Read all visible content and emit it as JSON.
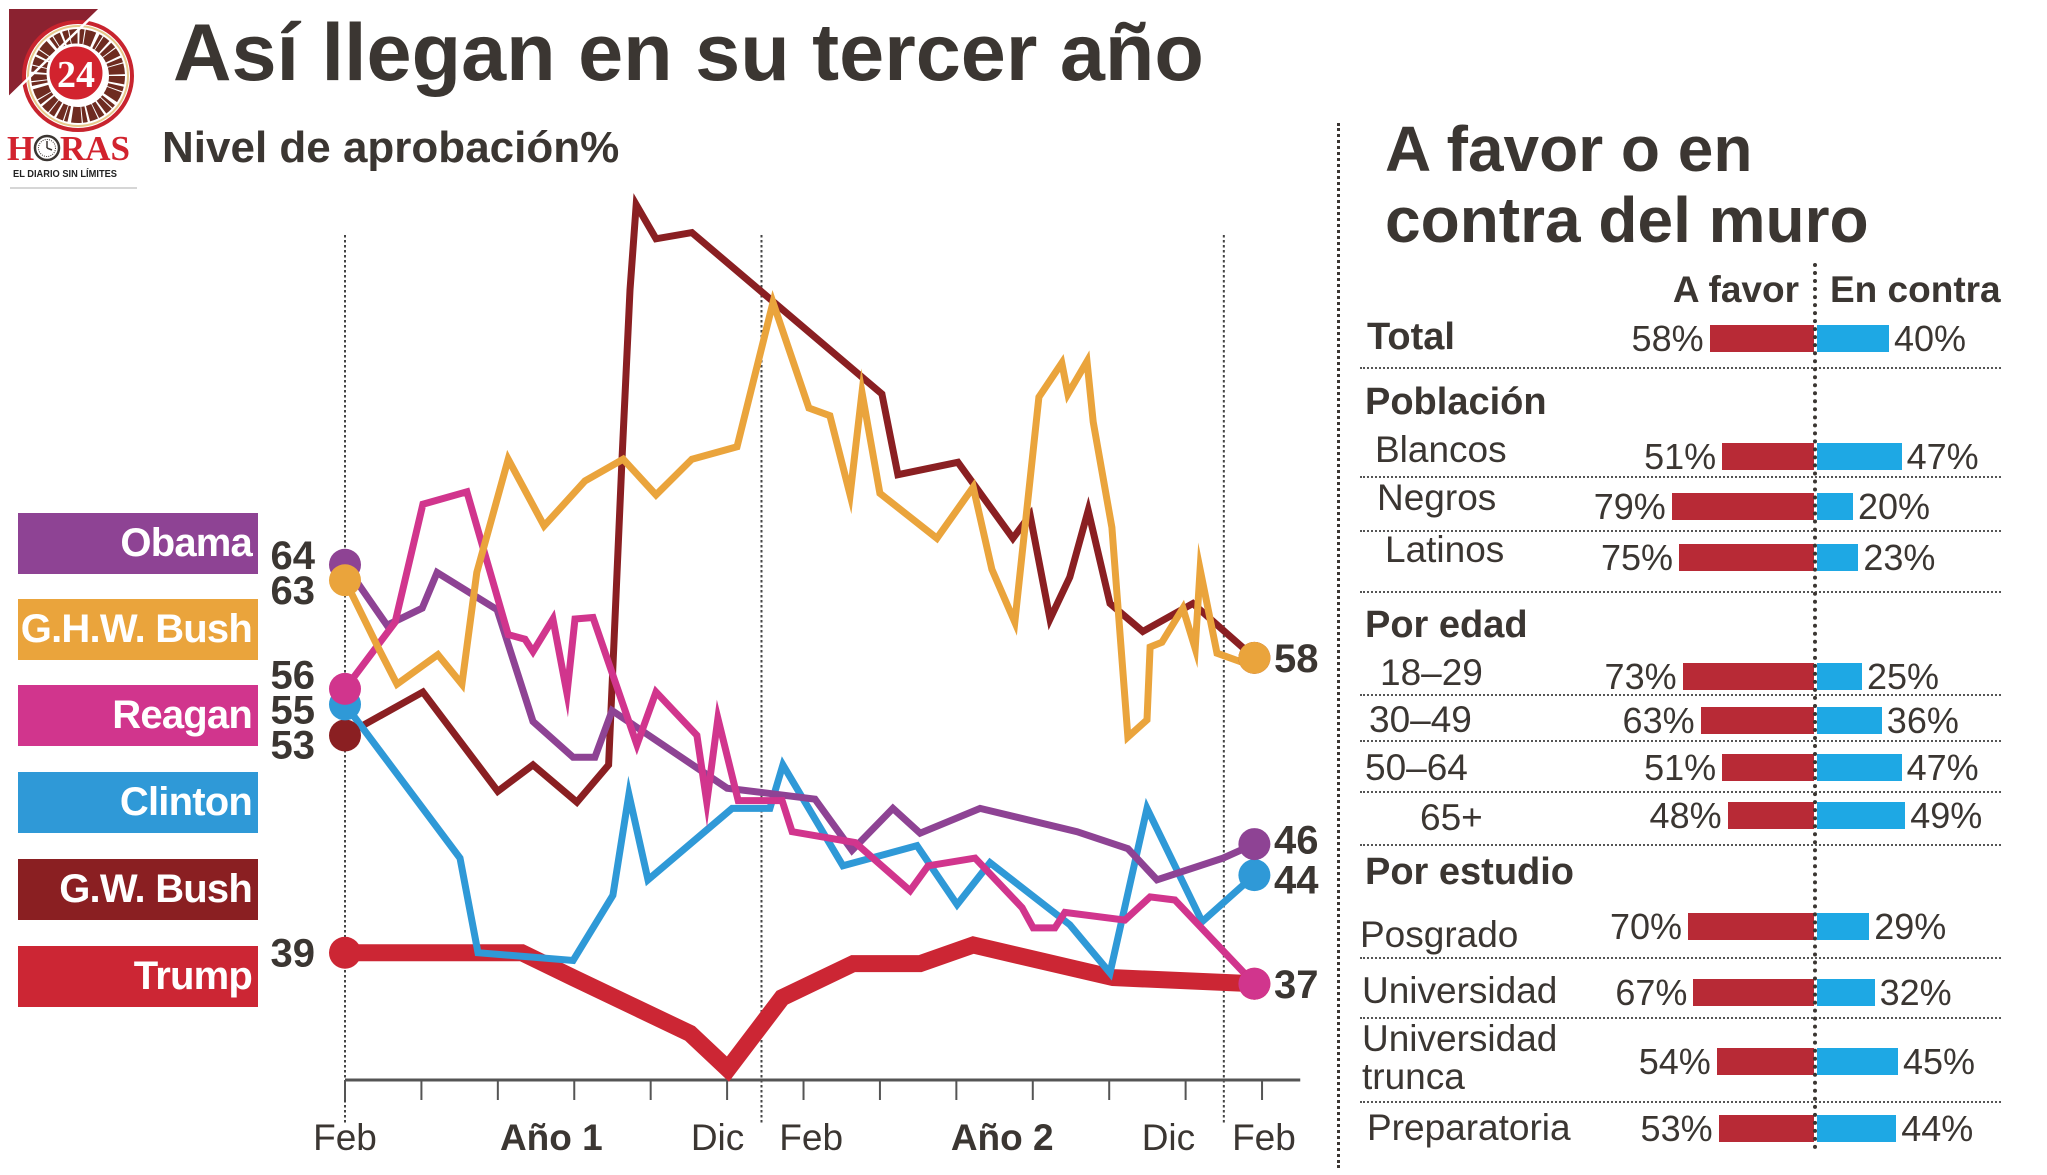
{
  "header": {
    "title": "Así llegan en su tercer año",
    "subtitle": "Nivel de aprobación%"
  },
  "logo": {
    "number": "24",
    "name_prefix": "H",
    "name_icon": "clock-icon",
    "name_suffix": "RAS",
    "tagline": "EL DIARIO SIN LÍMITES",
    "colors": {
      "red": "#D2232E",
      "dark_red": "#8B2230",
      "skyline": "#6E2B20"
    }
  },
  "text_color": "#3B3632",
  "chart_data": [
    {
      "type": "line",
      "title": "Así llegan en su tercer año",
      "subtitle": "Nivel de aprobación%",
      "xlabel": "",
      "ylabel": "Nivel de aprobación (%)",
      "x_units": "months since February of year 1",
      "xlim": [
        0,
        25
      ],
      "ylim": [
        30.8,
        87.5
      ],
      "grid": false,
      "legend_position": "left",
      "x_ticks": [
        0,
        2,
        4,
        6,
        8,
        10,
        12,
        14,
        16,
        18,
        20,
        22,
        24
      ],
      "x_tick_labels": [
        {
          "text": "Feb",
          "x": 0,
          "bold": false
        },
        {
          "text": "Año 1",
          "x": 5.4,
          "bold": true
        },
        {
          "text": "Dic",
          "x": 9.75,
          "bold": false
        },
        {
          "text": "Feb",
          "x": 12.2,
          "bold": false
        },
        {
          "text": "Año 2",
          "x": 17.2,
          "bold": true
        },
        {
          "text": "Dic",
          "x": 21.55,
          "bold": false
        },
        {
          "text": "Feb",
          "x": 24.05,
          "bold": false
        }
      ],
      "reference_lines_x": [
        0,
        10.9,
        23
      ],
      "series": [
        {
          "name": "Obama",
          "color": "#8E4394",
          "highlight": false,
          "start_label": "64",
          "points": [
            [
              0,
              64
            ],
            [
              1.1,
              60.1
            ],
            [
              2.02,
              61.2
            ],
            [
              2.41,
              63.5
            ],
            [
              3.98,
              61.1
            ],
            [
              4.92,
              53.9
            ],
            [
              5.97,
              51.6
            ],
            [
              6.54,
              51.6
            ],
            [
              6.99,
              54.6
            ],
            [
              10.0,
              49.6
            ],
            [
              12.3,
              48.9
            ],
            [
              13.27,
              45.6
            ],
            [
              14.34,
              48.3
            ],
            [
              15.05,
              46.7
            ],
            [
              16.62,
              48.3
            ],
            [
              19.16,
              46.8
            ],
            [
              20.49,
              45.7
            ],
            [
              21.25,
              43.7
            ],
            [
              22.98,
              45.1
            ],
            [
              23.8,
              46
            ]
          ]
        },
        {
          "name": "G.H.W. Bush",
          "color": "#EAA43C",
          "highlight": false,
          "start_label": "63",
          "points": [
            [
              0,
              63
            ],
            [
              0.84,
              58.8
            ],
            [
              1.36,
              56.3
            ],
            [
              2.43,
              58.2
            ],
            [
              3.06,
              56.3
            ],
            [
              3.45,
              63.5
            ],
            [
              4.27,
              70.8
            ],
            [
              5.21,
              66.5
            ],
            [
              6.28,
              69.4
            ],
            [
              7.28,
              70.8
            ],
            [
              8.14,
              68.5
            ],
            [
              9.08,
              70.8
            ],
            [
              10.26,
              71.6
            ],
            [
              11.2,
              80.9
            ],
            [
              12.14,
              74.1
            ],
            [
              12.69,
              73.6
            ],
            [
              13.22,
              68.5
            ],
            [
              13.53,
              75.1
            ],
            [
              14.0,
              68.6
            ],
            [
              15.49,
              65.7
            ],
            [
              16.44,
              69.0
            ],
            [
              16.93,
              63.7
            ],
            [
              17.53,
              60.3
            ],
            [
              18.16,
              74.8
            ],
            [
              18.76,
              77.0
            ],
            [
              18.92,
              75.0
            ],
            [
              19.42,
              77.1
            ],
            [
              19.58,
              73.2
            ],
            [
              20.07,
              66.4
            ],
            [
              20.49,
              52.9
            ],
            [
              20.99,
              54.0
            ],
            [
              21.07,
              58.7
            ],
            [
              21.38,
              59.0
            ],
            [
              21.93,
              61.2
            ],
            [
              22.25,
              58.6
            ],
            [
              22.38,
              63.7
            ],
            [
              22.82,
              58.3
            ],
            [
              23.5,
              57.7
            ],
            [
              23.8,
              58
            ]
          ]
        },
        {
          "name": "Reagan",
          "color": "#D1358D",
          "highlight": false,
          "start_label": "56",
          "points": [
            [
              0,
              56
            ],
            [
              1.31,
              60.3
            ],
            [
              2.04,
              67.9
            ],
            [
              3.19,
              68.7
            ],
            [
              4.27,
              59.5
            ],
            [
              4.71,
              59.2
            ],
            [
              4.92,
              58.4
            ],
            [
              5.44,
              60.5
            ],
            [
              5.81,
              55.7
            ],
            [
              6.02,
              60.5
            ],
            [
              6.49,
              60.6
            ],
            [
              7.64,
              52.4
            ],
            [
              8.14,
              55.8
            ],
            [
              9.21,
              53.0
            ],
            [
              9.47,
              48.7
            ],
            [
              9.76,
              54.1
            ],
            [
              10.29,
              48.8
            ],
            [
              11.44,
              48.8
            ],
            [
              11.7,
              46.8
            ],
            [
              13.35,
              46.1
            ],
            [
              14.79,
              43.0
            ],
            [
              15.26,
              44.6
            ],
            [
              16.49,
              45.1
            ],
            [
              17.72,
              41.9
            ],
            [
              18.01,
              40.6
            ],
            [
              18.58,
              40.6
            ],
            [
              18.84,
              41.6
            ],
            [
              20.41,
              41.1
            ],
            [
              21.07,
              42.6
            ],
            [
              21.72,
              42.4
            ],
            [
              23.8,
              37
            ]
          ]
        },
        {
          "name": "Clinton",
          "color": "#2F99D7",
          "highlight": false,
          "start_label": "55",
          "points": [
            [
              0,
              55
            ],
            [
              3.01,
              45.1
            ],
            [
              3.48,
              39.0
            ],
            [
              5.97,
              38.5
            ],
            [
              7.01,
              42.7
            ],
            [
              7.43,
              49.2
            ],
            [
              7.93,
              43.7
            ],
            [
              10.13,
              48.3
            ],
            [
              11.12,
              48.3
            ],
            [
              11.46,
              51.1
            ],
            [
              13.03,
              44.6
            ],
            [
              14.97,
              45.9
            ],
            [
              16.02,
              42.1
            ],
            [
              16.88,
              44.8
            ],
            [
              18.97,
              40.8
            ],
            [
              20.02,
              37.7
            ],
            [
              20.99,
              48.3
            ],
            [
              22.43,
              41.0
            ],
            [
              23.8,
              44
            ]
          ]
        },
        {
          "name": "G.W. Bush",
          "color": "#8A1F22",
          "highlight": false,
          "start_label": "53",
          "points": [
            [
              0,
              53
            ],
            [
              2.04,
              55.8
            ],
            [
              4.0,
              49.4
            ],
            [
              4.92,
              51.1
            ],
            [
              6.07,
              48.7
            ],
            [
              6.9,
              51.1
            ],
            [
              7.25,
              70.8
            ],
            [
              7.46,
              81.7
            ],
            [
              7.62,
              87.2
            ],
            [
              8.14,
              85.0
            ],
            [
              9.08,
              85.4
            ],
            [
              14.05,
              75.0
            ],
            [
              14.47,
              69.8
            ],
            [
              16.04,
              70.6
            ],
            [
              17.48,
              65.7
            ],
            [
              17.93,
              67.2
            ],
            [
              18.45,
              60.5
            ],
            [
              18.97,
              63.2
            ],
            [
              19.45,
              67.5
            ],
            [
              20.02,
              61.5
            ],
            [
              20.88,
              59.7
            ],
            [
              22.19,
              61.5
            ],
            [
              23.8,
              58
            ]
          ]
        },
        {
          "name": "Trump",
          "color": "#CC2634",
          "highlight": true,
          "start_label": "39",
          "points": [
            [
              0,
              39
            ],
            [
              4.63,
              39.0
            ],
            [
              5.97,
              37.4
            ],
            [
              9.03,
              33.8
            ],
            [
              10.02,
              31.5
            ],
            [
              11.44,
              36.1
            ],
            [
              13.3,
              38.3
            ],
            [
              15.05,
              38.3
            ],
            [
              16.44,
              39.5
            ],
            [
              20.1,
              37.4
            ],
            [
              23.8,
              37
            ]
          ]
        }
      ],
      "end_labels": [
        {
          "text": "58",
          "value": 58,
          "series": [
            "G.H.W. Bush",
            "G.W. Bush"
          ]
        },
        {
          "text": "46",
          "value": 46,
          "series": [
            "Obama"
          ]
        },
        {
          "text": "44",
          "value": 44,
          "series": [
            "Clinton"
          ]
        },
        {
          "text": "37",
          "value": 37,
          "series": [
            "Reagan",
            "Trump"
          ]
        }
      ]
    },
    {
      "type": "bar",
      "orientation": "horizontal-diverging",
      "title": "A favor o en contra del muro",
      "title_lines": [
        "A favor o en",
        "contra del muro"
      ],
      "xlim": [
        0,
        100
      ],
      "series": [
        {
          "name": "A favor",
          "color": "#B82A36"
        },
        {
          "name": "En contra",
          "color": "#1EA8E4"
        }
      ],
      "total": {
        "label": "Total",
        "values": [
          58,
          40
        ],
        "labels": [
          "58%",
          "40%"
        ]
      },
      "groups": [
        {
          "title": "Población",
          "rows": [
            {
              "label": "Blancos",
              "values": [
                51,
                47
              ],
              "labels": [
                "51%",
                "47%"
              ]
            },
            {
              "label": "Negros",
              "values": [
                79,
                20
              ],
              "labels": [
                "79%",
                "20%"
              ]
            },
            {
              "label": "Latinos",
              "values": [
                75,
                23
              ],
              "labels": [
                "75%",
                "23%"
              ]
            }
          ]
        },
        {
          "title": "Por edad",
          "rows": [
            {
              "label": "18–29",
              "values": [
                73,
                25
              ],
              "labels": [
                "73%",
                "25%"
              ]
            },
            {
              "label": "30–49",
              "values": [
                63,
                36
              ],
              "labels": [
                "63%",
                "36%"
              ]
            },
            {
              "label": "50–64",
              "values": [
                51,
                47
              ],
              "labels": [
                "51%",
                "47%"
              ]
            },
            {
              "label": "65+",
              "values": [
                48,
                49
              ],
              "labels": [
                "48%",
                "49%"
              ]
            }
          ]
        },
        {
          "title": "Por estudio",
          "rows": [
            {
              "label": "Posgrado",
              "values": [
                70,
                29
              ],
              "labels": [
                "70%",
                "29%"
              ]
            },
            {
              "label": "Universidad",
              "values": [
                67,
                32
              ],
              "labels": [
                "67%",
                "32%"
              ]
            },
            {
              "label": "Universidad trunca",
              "values": [
                54,
                45
              ],
              "labels": [
                "54%",
                "45%"
              ]
            },
            {
              "label": "Preparatoria",
              "values": [
                53,
                44
              ],
              "labels": [
                "53%",
                "44%"
              ]
            }
          ]
        }
      ]
    }
  ]
}
